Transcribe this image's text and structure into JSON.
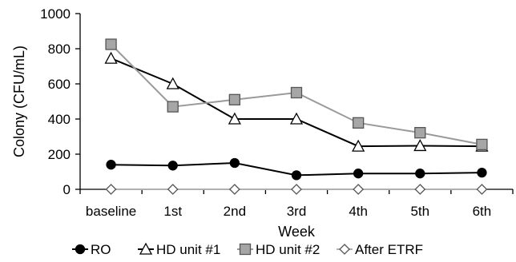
{
  "chart_data": {
    "type": "line",
    "title": "",
    "xlabel": "Week",
    "ylabel": "Colony (CFU/mL)",
    "ylim": [
      0,
      1000
    ],
    "yticks": [
      0,
      200,
      400,
      600,
      800,
      1000
    ],
    "grid": false,
    "legend_position": "bottom",
    "categories": [
      "baseline",
      "1st",
      "2nd",
      "3rd",
      "4th",
      "5th",
      "6th"
    ],
    "series": [
      {
        "name": "RO",
        "values": [
          140,
          135,
          150,
          80,
          90,
          90,
          95
        ],
        "marker": "circle",
        "line_color": "#000000",
        "marker_fill": "#000000",
        "marker_stroke": "#000000"
      },
      {
        "name": "HD unit #1",
        "values": [
          745,
          600,
          400,
          400,
          245,
          248,
          245
        ],
        "marker": "triangle",
        "line_color": "#000000",
        "marker_fill": "#ffffff",
        "marker_stroke": "#000000"
      },
      {
        "name": "HD unit #2",
        "values": [
          825,
          470,
          510,
          550,
          378,
          322,
          255
        ],
        "marker": "square",
        "line_color": "#9a9a9a",
        "marker_fill": "#a6a6a6",
        "marker_stroke": "#555555"
      },
      {
        "name": "After ETRF",
        "values": [
          0,
          0,
          0,
          0,
          0,
          0,
          0
        ],
        "marker": "diamond",
        "line_color": "#b0b0b0",
        "marker_fill": "#ffffff",
        "marker_stroke": "#555555"
      }
    ]
  }
}
